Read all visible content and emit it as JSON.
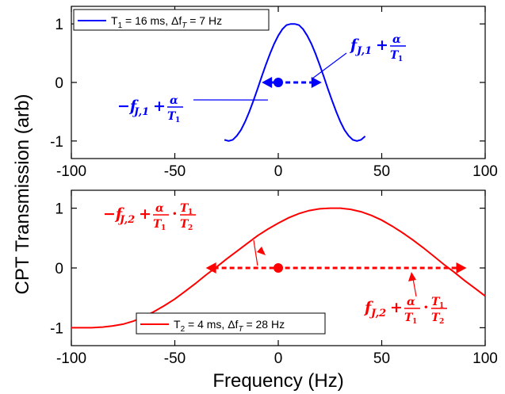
{
  "chart_data": [
    {
      "type": "line",
      "panel": "top",
      "xlim": [
        -100,
        100
      ],
      "ylim": [
        -1.3,
        1.3
      ],
      "xticks": [
        -100,
        -50,
        0,
        50,
        100
      ],
      "yticks": [
        -1,
        0,
        1
      ],
      "x_tick_labels": [
        "-100",
        "-50",
        "0",
        "50",
        "100"
      ],
      "y_tick_labels": [
        "-1",
        "0",
        "1"
      ],
      "grid": false,
      "legend_position": "top-left",
      "series": [
        {
          "name": "T1 = 16 ms, ΔfT = 7 Hz",
          "color": "#0000ff",
          "x": [
            -26,
            -24,
            -22,
            -20,
            -18,
            -16,
            -14,
            -12,
            -10,
            -8,
            -6,
            -4,
            -2,
            0,
            2,
            4,
            6,
            7,
            8,
            10,
            12,
            14,
            16,
            18,
            20,
            22,
            24,
            26,
            28,
            30,
            32,
            34,
            36,
            38,
            40,
            42
          ],
          "y": [
            -0.98,
            -1.0,
            -0.98,
            -0.91,
            -0.81,
            -0.67,
            -0.5,
            -0.31,
            -0.11,
            0.1,
            0.3,
            0.49,
            0.66,
            0.8,
            0.91,
            0.98,
            1.0,
            1.0,
            1.0,
            0.98,
            0.91,
            0.8,
            0.66,
            0.49,
            0.3,
            0.1,
            -0.11,
            -0.31,
            -0.5,
            -0.67,
            -0.81,
            -0.91,
            -0.98,
            -1.0,
            -0.98,
            -0.92
          ]
        }
      ],
      "annotations": {
        "marker_point": {
          "x": 0,
          "y": 0
        },
        "arrow_range": [
          -8,
          21
        ],
        "label_right": {
          "prefix": "f",
          "sub": "J,1",
          "op": "+",
          "num": "α",
          "den": "T",
          "den_sub": "1",
          "pointer_to": [
            16,
            0
          ]
        },
        "label_left": {
          "prefix": "−f",
          "sub": "J,1",
          "op": "+",
          "num": "α",
          "den": "T",
          "den_sub": "1",
          "pointer_to": [
            -5,
            -0.3
          ]
        }
      }
    },
    {
      "type": "line",
      "panel": "bottom",
      "xlim": [
        -100,
        100
      ],
      "ylim": [
        -1.3,
        1.3
      ],
      "xticks": [
        -100,
        -50,
        0,
        50,
        100
      ],
      "yticks": [
        -1,
        0,
        1
      ],
      "x_tick_labels": [
        "-100",
        "-50",
        "0",
        "50",
        "100"
      ],
      "y_tick_labels": [
        "-1",
        "0",
        "1"
      ],
      "xlabel": "Frequency (Hz)",
      "grid": false,
      "legend_position": "bottom-center",
      "series": [
        {
          "name": "T2 = 4 ms, ΔfT = 28 Hz",
          "color": "#ff0000",
          "x": [
            -100,
            -95,
            -90,
            -85,
            -80,
            -75,
            -70,
            -65,
            -60,
            -55,
            -50,
            -45,
            -40,
            -35,
            -30,
            -25,
            -20,
            -15,
            -10,
            -5,
            0,
            5,
            10,
            15,
            20,
            25,
            28,
            30,
            35,
            40,
            45,
            50,
            55,
            60,
            65,
            70,
            75,
            80,
            85,
            90,
            95,
            100
          ],
          "y": [
            -1.0,
            -1.0,
            -1.0,
            -0.99,
            -0.97,
            -0.94,
            -0.89,
            -0.82,
            -0.73,
            -0.63,
            -0.52,
            -0.39,
            -0.26,
            -0.12,
            0.01,
            0.15,
            0.28,
            0.41,
            0.54,
            0.65,
            0.75,
            0.84,
            0.91,
            0.96,
            0.99,
            1.0,
            1.0,
            1.0,
            0.98,
            0.94,
            0.88,
            0.8,
            0.7,
            0.59,
            0.47,
            0.34,
            0.2,
            0.06,
            -0.07,
            -0.21,
            -0.34,
            -0.47
          ]
        }
      ],
      "annotations": {
        "marker_point": {
          "x": 0,
          "y": 0
        },
        "arrow_range": [
          -35,
          91
        ],
        "label_left": {
          "prefix": "−f",
          "sub": "J,2",
          "op": "+",
          "num": "α",
          "den": "T",
          "den_sub": "1",
          "dot": "·",
          "num2": "T",
          "num2_sub": "1",
          "den2": "T",
          "den2_sub": "2",
          "pointer_to": [
            -10,
            0.04
          ]
        },
        "label_right": {
          "prefix": "f",
          "sub": "J,2",
          "op": "+",
          "num": "α",
          "den": "T",
          "den_sub": "1",
          "dot": "·",
          "num2": "T",
          "num2_sub": "1",
          "den2": "T",
          "den2_sub": "2",
          "pointer_to": [
            64,
            -0.12
          ]
        }
      }
    }
  ],
  "shared": {
    "ylabel": "CPT Transmission (arb)"
  },
  "legend_text": {
    "top": {
      "t": "T",
      "t_sub": "1",
      "rest": " = 16 ms, Δf",
      "f_sub": "T",
      "tail": " = 7 Hz"
    },
    "bottom": {
      "t": "T",
      "t_sub": "2",
      "rest": " = 4 ms, Δf",
      "f_sub": "T",
      "tail": " = 28 Hz"
    }
  }
}
